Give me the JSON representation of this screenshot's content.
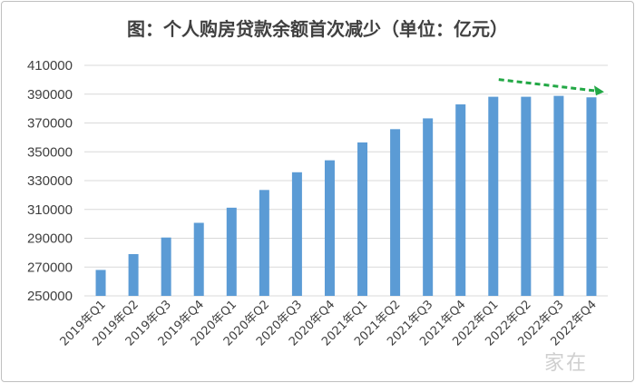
{
  "chart_data": {
    "type": "bar",
    "title": "图：个人购房贷款余额首次减少（单位：亿元）",
    "categories": [
      "2019年Q1",
      "2019年Q2",
      "2019年Q3",
      "2019年Q4",
      "2020年Q1",
      "2020年Q2",
      "2020年Q3",
      "2020年Q4",
      "2021年Q1",
      "2021年Q2",
      "2021年Q3",
      "2021年Q4",
      "2022年Q1",
      "2022年Q2",
      "2022年Q3",
      "2022年Q4"
    ],
    "values": [
      268000,
      279000,
      290500,
      300700,
      311200,
      323500,
      335800,
      344100,
      356500,
      365700,
      373200,
      382900,
      388200,
      388200,
      388800,
      387800
    ],
    "ylim": [
      250000,
      410000
    ],
    "yticks": [
      250000,
      270000,
      290000,
      310000,
      330000,
      350000,
      370000,
      390000,
      410000
    ],
    "ytick_labels": [
      "250000",
      "270000",
      "290000",
      "310000",
      "330000",
      "350000",
      "370000",
      "390000",
      "410000"
    ],
    "xlabel": "",
    "ylabel": "",
    "grid": true,
    "bar_color": "#5b9bd5",
    "grid_color": "#d9d9d9",
    "annotation_arrow_color": "#22a845",
    "annotation": {
      "type": "trend-arrow",
      "style": "dashed",
      "from_category": "2022年Q1",
      "to_category": "2022年Q4"
    }
  },
  "watermark": "家在"
}
